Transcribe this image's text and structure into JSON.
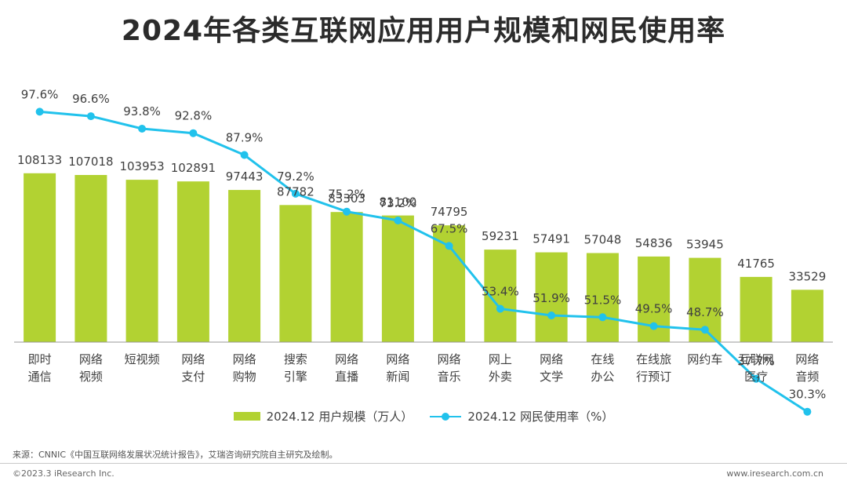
{
  "page": {
    "title": "2024年各类互联网应用用户规模和网民使用率"
  },
  "chart_data": {
    "type": "bar",
    "title": "2024年各类互联网应用用户规模和网民使用率",
    "categories": [
      [
        "即时",
        "通信"
      ],
      [
        "网络",
        "视频"
      ],
      [
        "短视频"
      ],
      [
        "网络",
        "支付"
      ],
      [
        "网络",
        "购物"
      ],
      [
        "搜索",
        "引擎"
      ],
      [
        "网络",
        "直播"
      ],
      [
        "网络",
        "新闻"
      ],
      [
        "网络",
        "音乐"
      ],
      [
        "网上",
        "外卖"
      ],
      [
        "网络",
        "文学"
      ],
      [
        "在线",
        "办公"
      ],
      [
        "在线旅",
        "行预订"
      ],
      [
        "网约车"
      ],
      [
        "互联网",
        "医疗"
      ],
      [
        "网络",
        "音频"
      ]
    ],
    "series": [
      {
        "name": "2024.12 用户规模（万人）",
        "type": "bar",
        "color": "#b2d232",
        "values": [
          108133,
          107018,
          103953,
          102891,
          97443,
          87782,
          83303,
          81100,
          74795,
          59231,
          57491,
          57048,
          54836,
          53945,
          41765,
          33529
        ]
      },
      {
        "name": "2024.12 网民使用率（%）",
        "type": "line",
        "color": "#21c2ec",
        "values": [
          97.6,
          96.6,
          93.8,
          92.8,
          87.9,
          79.2,
          75.2,
          73.2,
          67.5,
          53.4,
          51.9,
          51.5,
          49.5,
          48.7,
          37.7,
          30.3
        ],
        "labels": [
          "97.6%",
          "96.6%",
          "93.8%",
          "92.8%",
          "87.9%",
          "79.2%",
          "75.2%",
          "73.2%",
          "67.5%",
          "53.4%",
          "51.9%",
          "51.5%",
          "49.5%",
          "48.7%",
          "37.7%",
          "30.3%"
        ]
      }
    ],
    "grid": false,
    "legend_position": "bottom"
  },
  "legend": {
    "bar_label": "2024.12 用户规模（万人）",
    "line_label": "2024.12 网民使用率（%）"
  },
  "footer": {
    "source": "来源：CNNIC《中国互联网络发展状况统计报告》，艾瑞咨询研究院自主研究及绘制。",
    "copyright": "©2023.3 iResearch Inc.",
    "website": "www.iresearch.com.cn"
  }
}
